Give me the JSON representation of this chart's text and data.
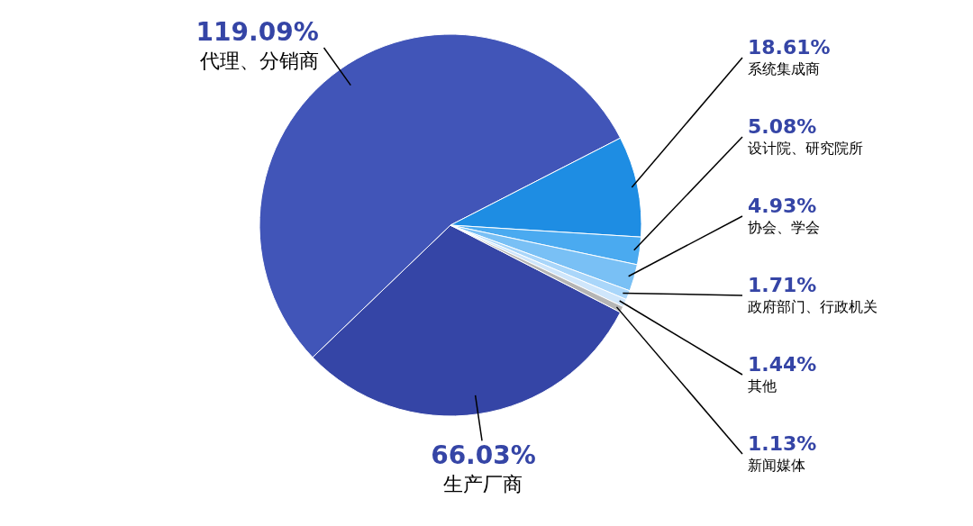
{
  "chart_data": {
    "type": "pie",
    "categories": [
      "生产厂商",
      "代理、分销商",
      "系统集成商",
      "设计院、研究院所",
      "协会、学会",
      "政府部门、行政机关",
      "其他",
      "新闻媒体"
    ],
    "values": [
      66.03,
      119.09,
      18.61,
      5.08,
      4.93,
      1.71,
      1.44,
      1.13
    ],
    "value_labels": [
      "66.03%",
      "119.09%",
      "18.61%",
      "5.08%",
      "4.93%",
      "1.71%",
      "1.44%",
      "1.13%"
    ],
    "colors": [
      "#3545a6",
      "#4155b8",
      "#1e8de3",
      "#4aaaf0",
      "#79c0f5",
      "#a9d6fa",
      "#cfe6fb",
      "#b5b5b5"
    ]
  }
}
